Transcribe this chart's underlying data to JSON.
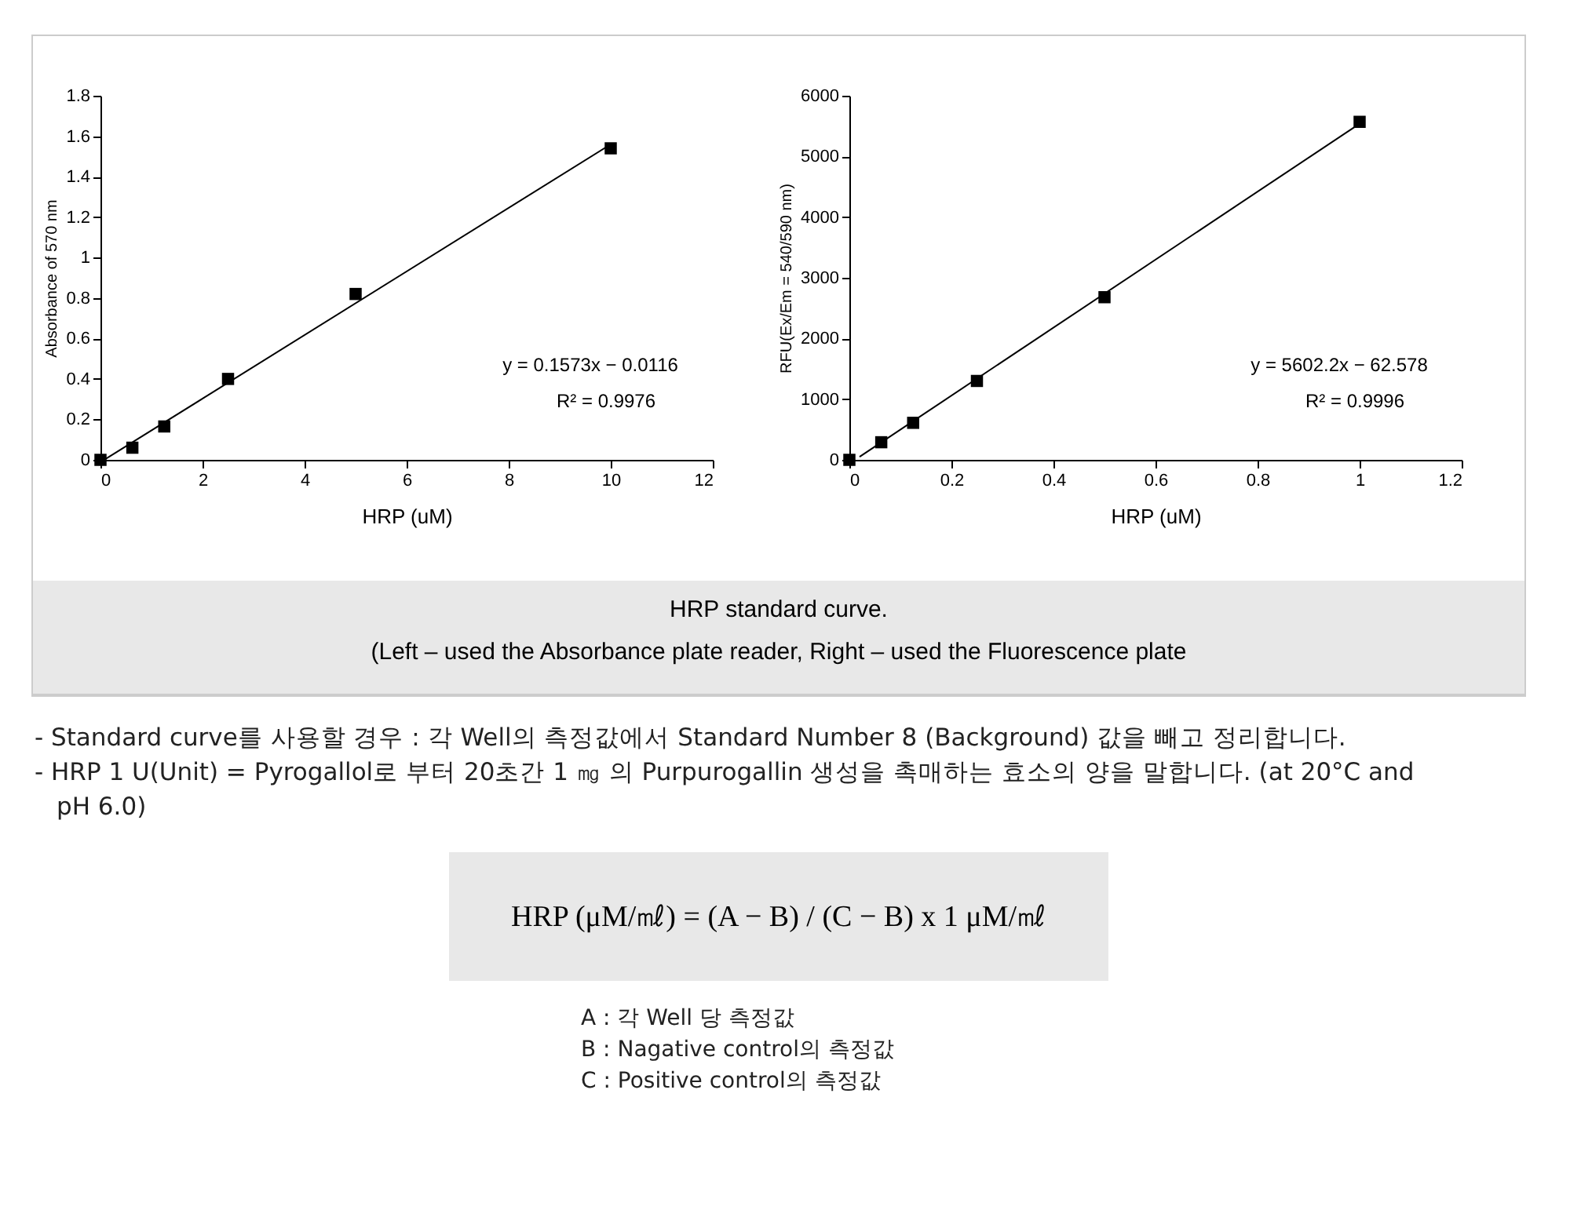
{
  "chart_data": [
    {
      "type": "scatter",
      "xlabel": "HRP (uM)",
      "ylabel": "Absorbance of 570 nm",
      "xlim": [
        0,
        12
      ],
      "xticks": [
        0,
        2,
        4,
        6,
        8,
        10,
        12
      ],
      "ylim": [
        0,
        1.8
      ],
      "yticks": [
        0,
        0.2,
        0.4,
        0.6,
        0.8,
        1,
        1.2,
        1.4,
        1.6,
        1.8
      ],
      "series": [
        {
          "type": "scatter",
          "marker": "square",
          "color": "#000000",
          "x": [
            0,
            0.625,
            1.25,
            2.5,
            5,
            10
          ],
          "values": [
            0,
            0.06,
            0.165,
            0.4,
            0.82,
            1.54
          ]
        },
        {
          "type": "line",
          "color": "#000000",
          "x": [
            0.1,
            10
          ],
          "values": [
            0.004,
            1.56
          ]
        }
      ],
      "annotations": [
        "y = 0.1573x − 0.0116",
        "R² = 0.9976"
      ]
    },
    {
      "type": "scatter",
      "xlabel": "HRP (uM)",
      "ylabel": "RFU(Ex/Em = 540/590 nm)",
      "xlim": [
        0,
        1.2
      ],
      "xticks": [
        0,
        0.2,
        0.4,
        0.6,
        0.8,
        1,
        1.2
      ],
      "ylim": [
        0,
        6000
      ],
      "yticks": [
        0,
        1000,
        2000,
        3000,
        4000,
        5000,
        6000
      ],
      "series": [
        {
          "type": "scatter",
          "marker": "square",
          "color": "#000000",
          "x": [
            0,
            0.0625,
            0.125,
            0.25,
            0.5,
            1
          ],
          "values": [
            0,
            290,
            610,
            1300,
            2680,
            5570
          ]
        },
        {
          "type": "line",
          "color": "#000000",
          "x": [
            0.02,
            1
          ],
          "values": [
            50,
            5540
          ]
        }
      ],
      "annotations": [
        "y = 5602.2x − 62.578",
        "R² = 0.9996"
      ]
    },
    {
      "type": "other",
      "title": "HRP standard curve.",
      "subtitle": "(Left – used the Absorbance plate reader, Right – used the Fluorescence plate",
      "annotations": [
        "- Standard curve를 사용할 경우 : 각 Well의 측정값에서 Standard  Number 8 (Background) 값을 빼고 정리합니다.",
        "- HRP 1 U(Unit) = Pyrogallol로 부터 20초간 1 ㎎ 의 Purpurogallin 생성을 촉매하는 효소의 양을 말합니다.  (at 20°C and pH 6.0)",
        "HRP (μM/㎖) = (A − B) / (C − B) x 1 μM/㎖",
        "A : 각 Well 당 측정값",
        "B : Nagative control의 측정값",
        "C : Positive control의 측정값"
      ]
    }
  ]
}
